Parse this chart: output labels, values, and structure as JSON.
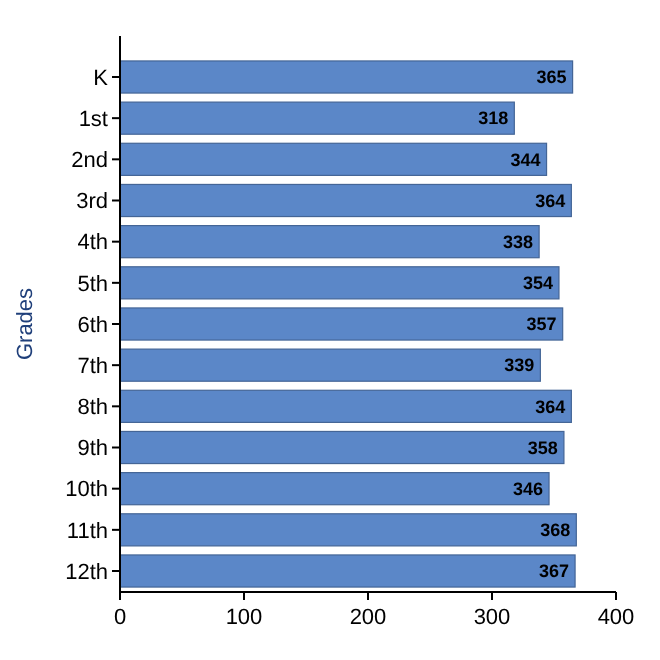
{
  "chart_data": {
    "type": "bar",
    "orientation": "horizontal",
    "ylabel": "Grades",
    "categories": [
      "K",
      "1st",
      "2nd",
      "3rd",
      "4th",
      "5th",
      "6th",
      "7th",
      "8th",
      "9th",
      "10th",
      "11th",
      "12th"
    ],
    "values": [
      365,
      318,
      344,
      364,
      338,
      354,
      357,
      339,
      364,
      358,
      346,
      368,
      367
    ],
    "color": "#5b87c8",
    "xlim": [
      0,
      400
    ],
    "xticks": [
      0,
      100,
      200,
      300,
      400
    ],
    "data_labels": true,
    "grid": false
  }
}
